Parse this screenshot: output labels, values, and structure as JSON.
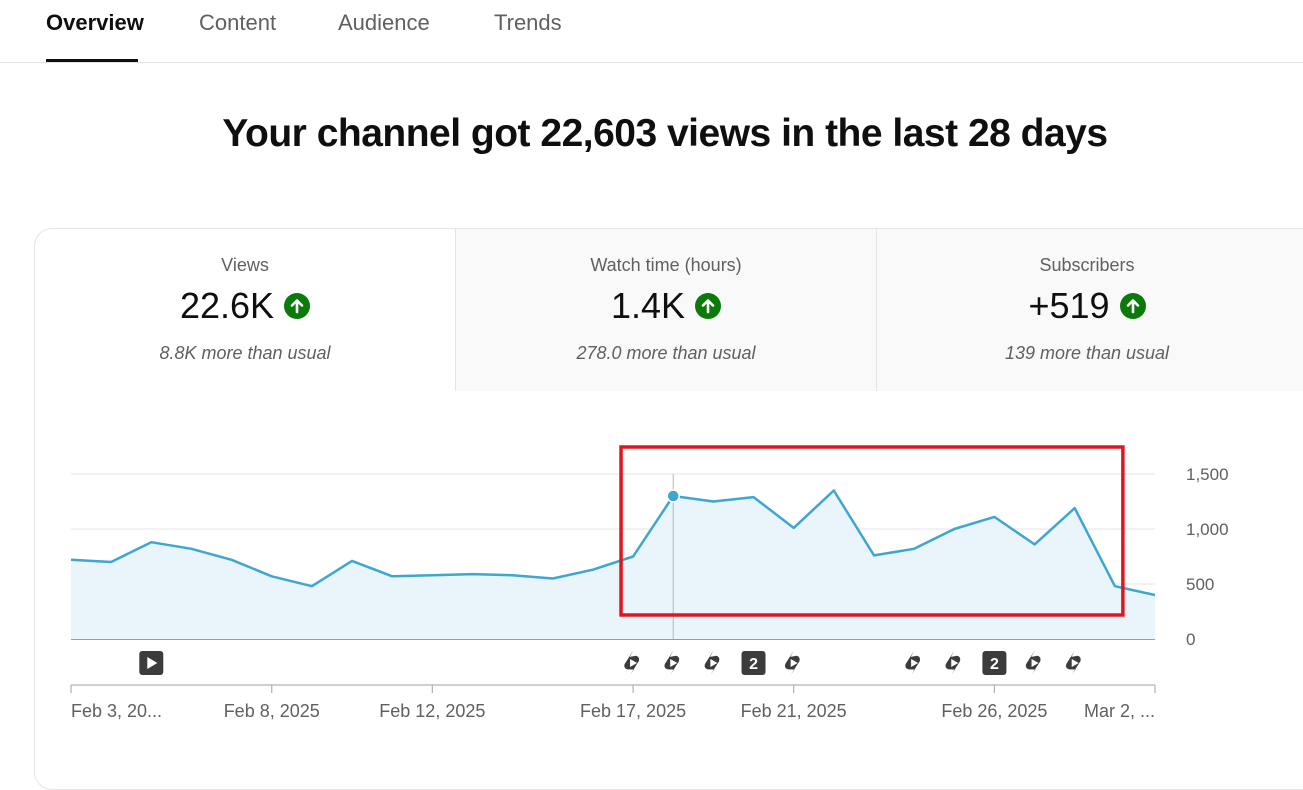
{
  "tabs": [
    {
      "label": "Overview",
      "active": true
    },
    {
      "label": "Content",
      "active": false
    },
    {
      "label": "Audience",
      "active": false
    },
    {
      "label": "Trends",
      "active": false
    }
  ],
  "headline": "Your channel got 22,603 views in the last 28 days",
  "metrics": [
    {
      "label": "Views",
      "value": "22.6K",
      "note": "8.8K more than usual",
      "trend_icon": "arrow-up-circle-icon",
      "selected": true
    },
    {
      "label": "Watch time (hours)",
      "value": "1.4K",
      "note": "278.0 more than usual",
      "trend_icon": "arrow-up-circle-icon",
      "selected": false
    },
    {
      "label": "Subscribers",
      "value": "+519",
      "note": "139 more than usual",
      "trend_icon": "arrow-up-circle-icon",
      "selected": false
    }
  ],
  "colors": {
    "line": "#3ea6d0",
    "area": "#eaf5fb",
    "trend_up": "#0b7a0b",
    "highlight_box": "#e0161f",
    "tab_active": "#0f0f0f",
    "tab_inactive": "#606060"
  },
  "chart_data": {
    "type": "area",
    "x": [
      "Feb 3, 2025",
      "Feb 4, 2025",
      "Feb 5, 2025",
      "Feb 6, 2025",
      "Feb 7, 2025",
      "Feb 8, 2025",
      "Feb 9, 2025",
      "Feb 10, 2025",
      "Feb 11, 2025",
      "Feb 12, 2025",
      "Feb 13, 2025",
      "Feb 14, 2025",
      "Feb 15, 2025",
      "Feb 16, 2025",
      "Feb 17, 2025",
      "Feb 18, 2025",
      "Feb 19, 2025",
      "Feb 20, 2025",
      "Feb 21, 2025",
      "Feb 22, 2025",
      "Feb 23, 2025",
      "Feb 24, 2025",
      "Feb 25, 2025",
      "Feb 26, 2025",
      "Feb 27, 2025",
      "Feb 28, 2025",
      "Mar 1, 2025",
      "Mar 2, 2025"
    ],
    "series": [
      {
        "values": [
          720,
          700,
          880,
          820,
          720,
          570,
          480,
          710,
          570,
          580,
          590,
          580,
          550,
          630,
          750,
          1300,
          1250,
          1290,
          1010,
          1350,
          760,
          820,
          1000,
          1110,
          860,
          1190,
          480,
          400
        ]
      }
    ],
    "ylim": [
      0,
      1500
    ],
    "yticks": [
      "0",
      "500",
      "1,000",
      "1,500"
    ],
    "ytick_values": [
      0,
      500,
      1000,
      1500
    ],
    "xtick_labels": [
      "Feb 3, 20...",
      "Feb 8, 2025",
      "Feb 12, 2025",
      "Feb 17, 2025",
      "Feb 21, 2025",
      "Feb 26, 2025",
      "Mar 2, ..."
    ],
    "xtick_indices": [
      0,
      5,
      9,
      14,
      18,
      23,
      27
    ],
    "hover_index": 15,
    "highlight_range": [
      13.7,
      26.2
    ],
    "grid": true,
    "upload_markers": [
      {
        "index": 2,
        "kind": "video",
        "icon": "video-play-icon",
        "label": ""
      },
      {
        "index": 14,
        "kind": "short",
        "icon": "shorts-icon",
        "label": ""
      },
      {
        "index": 15,
        "kind": "short",
        "icon": "shorts-icon",
        "label": ""
      },
      {
        "index": 16,
        "kind": "short",
        "icon": "shorts-icon",
        "label": ""
      },
      {
        "index": 17,
        "kind": "count",
        "icon": "upload-count-icon",
        "label": "2"
      },
      {
        "index": 18,
        "kind": "short",
        "icon": "shorts-icon",
        "label": ""
      },
      {
        "index": 21,
        "kind": "short",
        "icon": "shorts-icon",
        "label": ""
      },
      {
        "index": 22,
        "kind": "short",
        "icon": "shorts-icon",
        "label": ""
      },
      {
        "index": 23,
        "kind": "count",
        "icon": "upload-count-icon",
        "label": "2"
      },
      {
        "index": 24,
        "kind": "short",
        "icon": "shorts-icon",
        "label": ""
      },
      {
        "index": 25,
        "kind": "short",
        "icon": "shorts-icon",
        "label": ""
      }
    ]
  }
}
